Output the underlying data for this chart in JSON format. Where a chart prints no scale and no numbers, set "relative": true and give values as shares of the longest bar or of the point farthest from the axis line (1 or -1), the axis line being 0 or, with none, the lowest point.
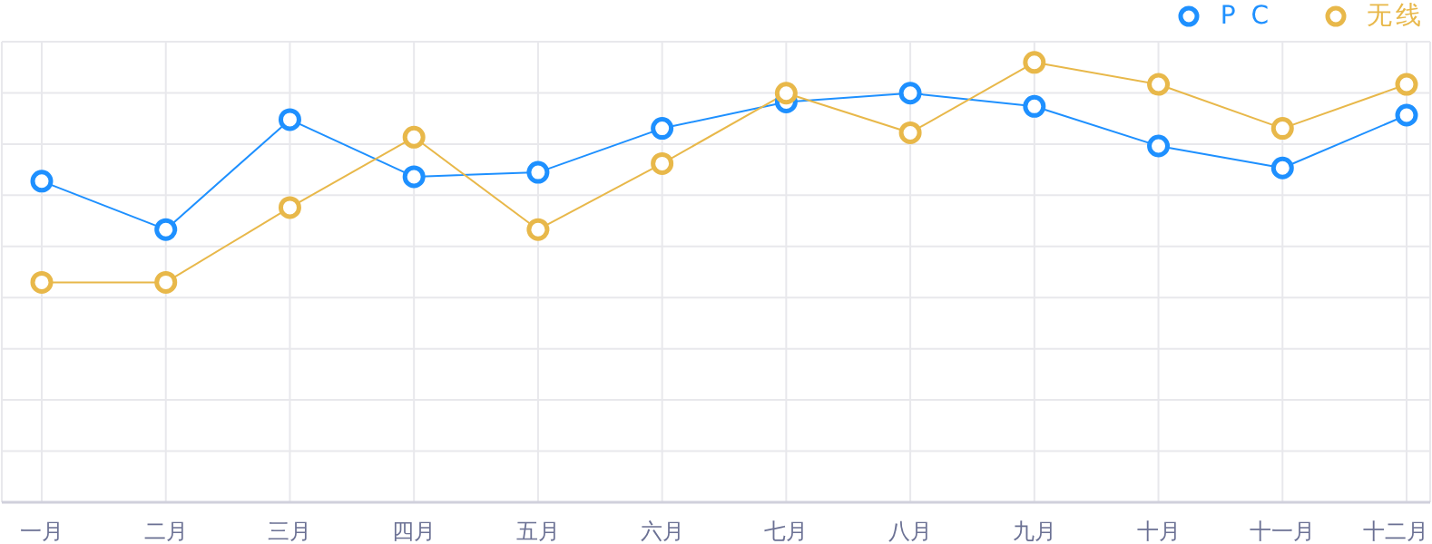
{
  "chart_data": {
    "type": "line",
    "relative": true,
    "categories": [
      "一月",
      "二月",
      "三月",
      "四月",
      "五月",
      "六月",
      "七月",
      "八月",
      "九月",
      "十月",
      "十一月",
      "十二月"
    ],
    "series": [
      {
        "name": "P C",
        "color": "#1e90ff",
        "values": [
          0.73,
          0.62,
          0.87,
          0.74,
          0.75,
          0.85,
          0.91,
          0.93,
          0.9,
          0.81,
          0.76,
          0.88
        ]
      },
      {
        "name": "无线",
        "color": "#e8b84a",
        "values": [
          0.5,
          0.5,
          0.67,
          0.83,
          0.62,
          0.77,
          0.93,
          0.84,
          1,
          0.95,
          0.85,
          0.95
        ]
      }
    ],
    "grid": true,
    "legend": "top right",
    "marker": "circle",
    "line_style": "solid"
  }
}
